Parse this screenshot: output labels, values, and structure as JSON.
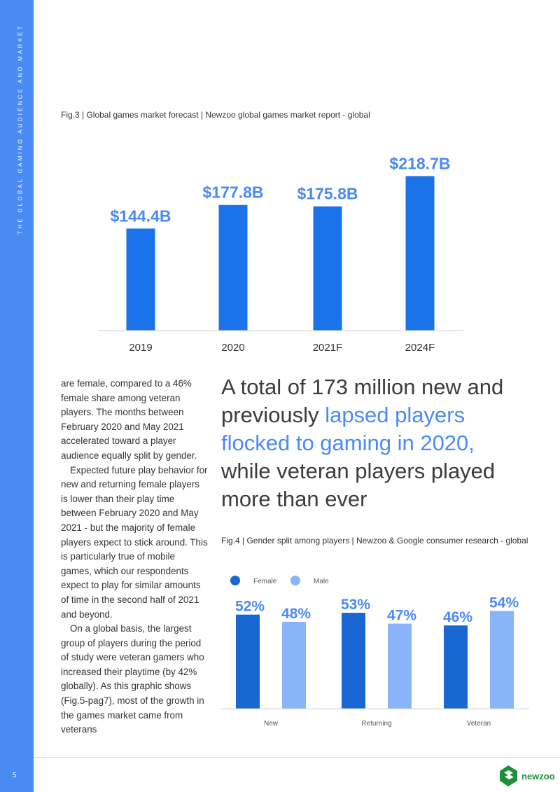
{
  "sidebar": {
    "title": "THE GLOBAL GAMING AUDIENCE AND MARKET",
    "page_number": "5",
    "color": "#4a8af4"
  },
  "fig3": {
    "caption": "Fig.3 | Global games market forecast | Newzoo global games market report - global"
  },
  "fig4": {
    "caption": "Fig.4 | Gender split among players | Newzoo & Google consumer research - global"
  },
  "body": {
    "p1": "are female, compared to a 46% female share among veteran players. The months between February 2020 and May 2021 accelerated toward a player audience equally split by gender.",
    "p2": "Expected future play behavior for new and returning female players is lower than their play time between February 2020 and May 2021 - but the majority of female players expect to stick around. This is particularly true of mobile games, which our respondents expect to play for similar amounts of time in the second half of 2021 and beyond.",
    "p3": "On a global basis, the largest group of players during the period of study were veteran gamers who increased their playtime (by 42% globally). As this graphic shows (Fig.5-pag7), most of the growth in the games market came from veterans"
  },
  "pullquote": {
    "part1": "A total of 173 million new and previously ",
    "highlight": "lapsed players flocked to gaming in 2020,",
    "part2": " while veteran players played more than ever"
  },
  "logo": {
    "text": "newzoo"
  },
  "chart_data": [
    {
      "type": "bar",
      "title": "Global games market forecast",
      "categories": [
        "2019",
        "2020",
        "2021F",
        "2024F"
      ],
      "values": [
        144.4,
        177.8,
        175.8,
        218.7
      ],
      "data_labels": [
        "$144.4B",
        "$177.8B",
        "$175.8B",
        "$218.7B"
      ],
      "unit": "$B",
      "ylim": [
        0,
        240
      ],
      "xlabel": "",
      "ylabel": "",
      "grid": false,
      "colors": {
        "bar": "#1a73e8",
        "label": "#4a8af4",
        "axis": "#cccccc",
        "tick": "#333333"
      }
    },
    {
      "type": "bar",
      "title": "Gender split among players",
      "categories": [
        "New",
        "Returning",
        "Veteran"
      ],
      "series": [
        {
          "name": "Female",
          "values": [
            52,
            53,
            46
          ],
          "labels": [
            "52%",
            "53%",
            "46%"
          ],
          "color": "#1967d2"
        },
        {
          "name": "Male",
          "values": [
            48,
            47,
            54
          ],
          "labels": [
            "48%",
            "47%",
            "54%"
          ],
          "color": "#8ab4f8"
        }
      ],
      "ylim": [
        0,
        60
      ],
      "legend": "top-left",
      "grid": false,
      "colors": {
        "label": "#4a8af4",
        "axis": "#cccccc",
        "tick": "#555555"
      }
    }
  ]
}
